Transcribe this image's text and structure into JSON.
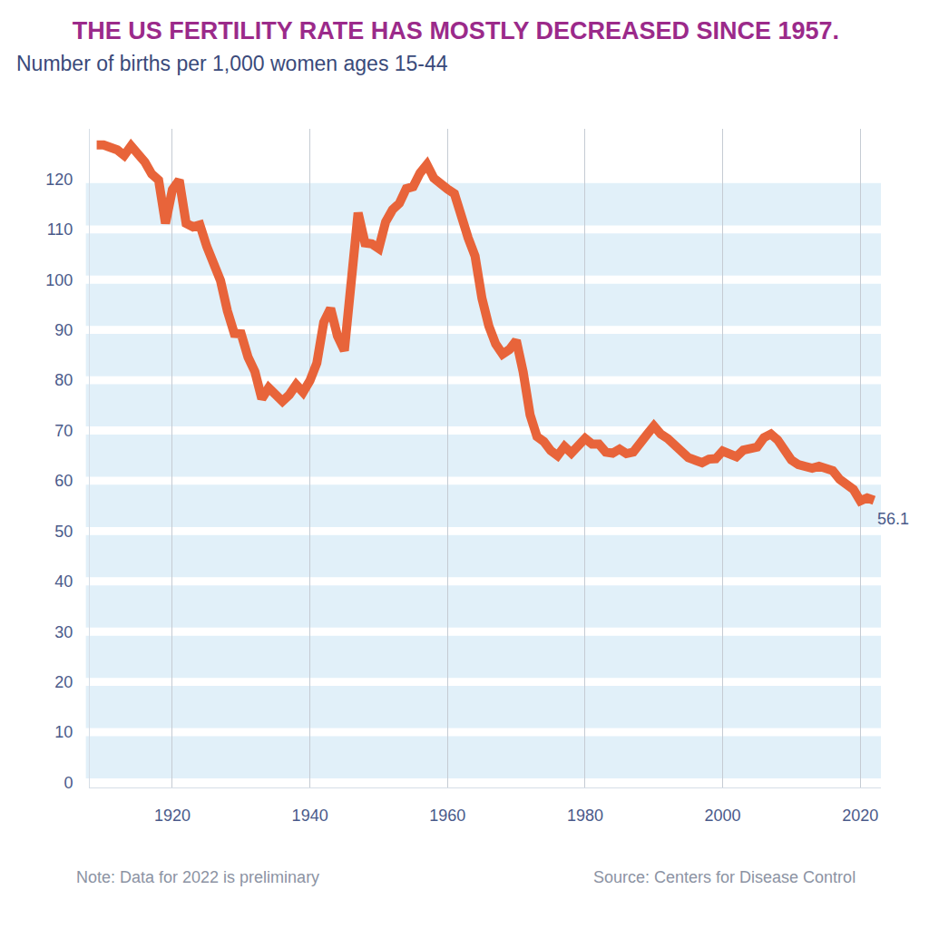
{
  "chart_data": {
    "type": "line",
    "title": "THE US FERTILITY RATE HAS MOSTLY DECREASED SINCE 1957.",
    "subtitle": "Number of births per 1,000 women ages 15-44",
    "note": "Note: Data for 2022 is preliminary",
    "source": "Source: Centers for Disease Control",
    "color": "#e8643a",
    "grid": true,
    "xlim": [
      1908,
      2023
    ],
    "xticks": [
      1920,
      1940,
      1960,
      1980,
      2000,
      2020
    ],
    "ylim": [
      -1,
      130
    ],
    "yticks": [
      0,
      10,
      20,
      30,
      40,
      50,
      60,
      70,
      80,
      90,
      100,
      110,
      120
    ],
    "x": [
      1909,
      1910,
      1911,
      1912,
      1913,
      1914,
      1915,
      1916,
      1917,
      1918,
      1919,
      1920,
      1921,
      1922,
      1923,
      1924,
      1925,
      1926,
      1927,
      1928,
      1929,
      1930,
      1931,
      1932,
      1933,
      1934,
      1935,
      1936,
      1937,
      1938,
      1939,
      1940,
      1941,
      1942,
      1943,
      1944,
      1945,
      1946,
      1947,
      1948,
      1949,
      1950,
      1951,
      1952,
      1953,
      1954,
      1955,
      1956,
      1957,
      1958,
      1959,
      1960,
      1961,
      1962,
      1963,
      1964,
      1965,
      1966,
      1967,
      1968,
      1969,
      1970,
      1971,
      1972,
      1973,
      1974,
      1975,
      1976,
      1977,
      1978,
      1979,
      1980,
      1981,
      1982,
      1983,
      1984,
      1985,
      1986,
      1987,
      1988,
      1989,
      1990,
      1991,
      1992,
      1993,
      1994,
      1995,
      1996,
      1997,
      1998,
      1999,
      2000,
      2001,
      2002,
      2003,
      2004,
      2005,
      2006,
      2007,
      2008,
      2009,
      2010,
      2011,
      2012,
      2013,
      2014,
      2015,
      2016,
      2017,
      2018,
      2019,
      2020,
      2021,
      2022
    ],
    "values": [
      126.8,
      126.8,
      126.3,
      125.8,
      124.7,
      126.6,
      125.0,
      123.4,
      121.0,
      119.8,
      111.2,
      117.9,
      119.8,
      111.2,
      110.5,
      110.9,
      106.6,
      102.6,
      99.8,
      93.8,
      89.3,
      89.2,
      84.6,
      81.7,
      76.3,
      78.5,
      77.2,
      75.8,
      77.1,
      79.1,
      77.6,
      79.9,
      83.4,
      91.5,
      94.3,
      88.8,
      85.9,
      101.9,
      113.3,
      107.3,
      107.1,
      106.2,
      111.5,
      113.9,
      115.2,
      118.1,
      118.5,
      121.2,
      122.9,
      120.2,
      118.8,
      118.0,
      117.1,
      112.0,
      108.3,
      104.7,
      96.3,
      90.8,
      87.2,
      85.2,
      86.1,
      87.9,
      81.6,
      73.1,
      68.8,
      67.8,
      66.0,
      65.0,
      66.8,
      65.5,
      67.2,
      68.4,
      67.3,
      67.3,
      65.7,
      65.5,
      66.3,
      65.4,
      65.7,
      67.2,
      69.2,
      70.9,
      69.3,
      68.4,
      67.0,
      65.9,
      64.6,
      64.1,
      63.6,
      64.3,
      64.4,
      65.9,
      65.1,
      64.8,
      66.1,
      66.4,
      66.7,
      68.6,
      69.3,
      68.1,
      66.2,
      64.1,
      63.2,
      63.0,
      62.5,
      62.9,
      62.5,
      62.0,
      60.3,
      59.1,
      58.3,
      56.0,
      56.6,
      56.1
    ],
    "annotations": [
      {
        "text": "56.1",
        "x": 2022,
        "y": 56.1
      }
    ]
  }
}
